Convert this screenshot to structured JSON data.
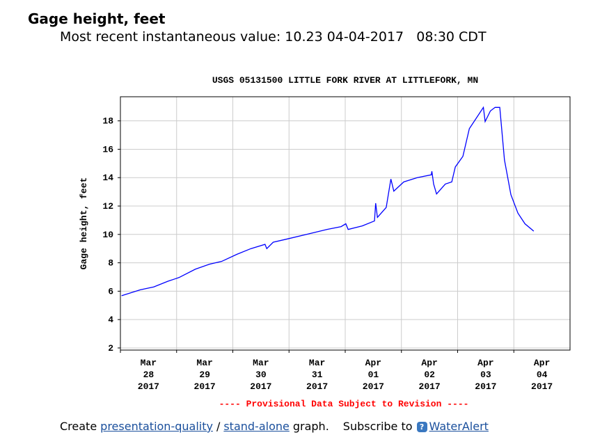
{
  "header": {
    "title": "Gage height, feet",
    "subtitle": "Most recent instantaneous value: 10.23 04-04-2017   08:30 CDT"
  },
  "chart_data": {
    "type": "line",
    "title": "USGS 05131500 LITTLE FORK RIVER AT LITTLEFORK, MN",
    "ylabel": "Gage height, feet",
    "note": "---- Provisional Data Subject to Revision ----",
    "color": "#0000ff",
    "grid": true,
    "x": [
      "2017-03-28T00:30",
      "2017-03-28T08:30",
      "2017-03-28T14:15",
      "2017-03-28T20:15",
      "2017-03-29T01:00",
      "2017-03-29T08:00",
      "2017-03-29T14:00",
      "2017-03-29T19:15",
      "2017-03-30T01:45",
      "2017-03-30T07:45",
      "2017-03-30T13:45",
      "2017-03-30T14:30",
      "2017-03-30T17:15",
      "2017-03-30T22:30",
      "2017-03-31T07:30",
      "2017-03-31T16:15",
      "2017-03-31T22:15",
      "2017-04-01T00:15",
      "2017-04-01T01:15",
      "2017-04-01T07:15",
      "2017-04-01T12:30",
      "2017-04-01T13:00",
      "2017-04-01T13:45",
      "2017-04-01T17:30",
      "2017-04-01T19:30",
      "2017-04-01T20:45",
      "2017-04-02T01:00",
      "2017-04-02T06:45",
      "2017-04-02T12:45",
      "2017-04-02T13:00",
      "2017-04-02T13:45",
      "2017-04-02T15:00",
      "2017-04-02T18:45",
      "2017-04-02T21:30",
      "2017-04-02T23:00",
      "2017-04-03T02:15",
      "2017-04-03T05:00",
      "2017-04-03T08:00",
      "2017-04-03T11:00",
      "2017-04-03T11:45",
      "2017-04-03T14:00",
      "2017-04-03T16:00",
      "2017-04-03T18:00",
      "2017-04-03T20:00",
      "2017-04-03T22:45",
      "2017-04-04T01:45",
      "2017-04-04T04:45",
      "2017-04-04T08:30"
    ],
    "values": [
      5.68,
      6.1,
      6.3,
      6.7,
      6.96,
      7.55,
      7.9,
      8.1,
      8.6,
      9.0,
      9.3,
      9.0,
      9.45,
      9.65,
      10.0,
      10.35,
      10.55,
      10.75,
      10.35,
      10.6,
      10.95,
      12.2,
      11.2,
      11.9,
      13.9,
      13.05,
      13.7,
      14.0,
      14.2,
      14.45,
      13.55,
      12.85,
      13.55,
      13.7,
      14.75,
      15.5,
      17.45,
      18.2,
      18.95,
      17.95,
      18.7,
      18.95,
      18.95,
      15.25,
      12.8,
      11.5,
      10.75,
      10.23
    ],
    "xlim": [
      "2017-03-28T00:00",
      "2017-04-05T00:00"
    ],
    "xticks": [
      {
        "value": "2017-03-28T00:00",
        "label": "Mar 28 2017"
      },
      {
        "value": "2017-03-29T00:00",
        "label": "Mar 29 2017"
      },
      {
        "value": "2017-03-30T00:00",
        "label": "Mar 30 2017"
      },
      {
        "value": "2017-03-31T00:00",
        "label": "Mar 31 2017"
      },
      {
        "value": "2017-04-01T00:00",
        "label": "Apr 01 2017"
      },
      {
        "value": "2017-04-02T00:00",
        "label": "Apr 02 2017"
      },
      {
        "value": "2017-04-03T00:00",
        "label": "Apr 03 2017"
      },
      {
        "value": "2017-04-04T00:00",
        "label": "Apr 04 2017"
      }
    ],
    "ylim": [
      1.85,
      19.7
    ],
    "yticks": [
      2,
      4,
      6,
      8,
      10,
      12,
      14,
      16,
      18
    ]
  },
  "footer": {
    "create": "Create",
    "link1": "presentation-quality",
    "separator": "/",
    "link2": "stand-alone",
    "graph": "graph.",
    "subscribe": "Subscribe to",
    "link3": "WaterAlert"
  }
}
